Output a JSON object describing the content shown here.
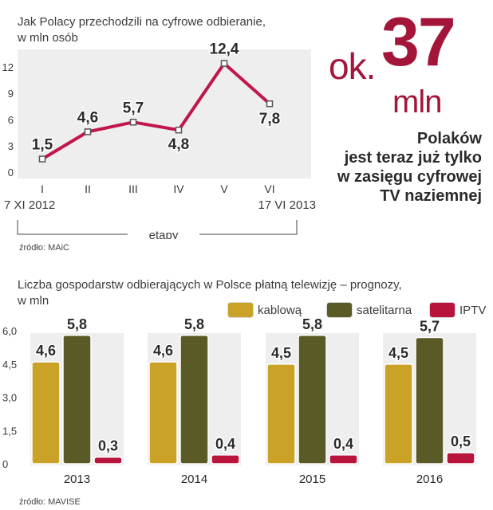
{
  "colors": {
    "accent": "#a3163a",
    "line": "#c2154a",
    "panel": "#eeeeee",
    "kablowa": "#c9a227",
    "satelitarna": "#5a5a26",
    "iptv": "#b8143c"
  },
  "headline": {
    "prefix": "ok.",
    "number": "37",
    "unit": "mln",
    "lines": [
      "Polaków",
      "jest teraz już tylko",
      "w zasięgu cyfrowej",
      "TV naziemnej"
    ]
  },
  "chart_data": [
    {
      "type": "line",
      "title": "Jak Polacy przechodzili na cyfrowe odbieranie, w mln osób",
      "title_lines": [
        "Jak Polacy przechodzili na cyfrowe odbieranie,",
        "w mln osób"
      ],
      "xlabel": "etapy",
      "x": [
        "I",
        "II",
        "III",
        "IV",
        "V",
        "VI"
      ],
      "values": [
        1.5,
        4.6,
        5.7,
        4.8,
        12.4,
        7.8
      ],
      "value_labels": [
        "1,5",
        "4,6",
        "5,7",
        "4,8",
        "12,4",
        "7,8"
      ],
      "yticks": [
        "0",
        "3",
        "6",
        "9",
        "12"
      ],
      "ylim": [
        0,
        13.5
      ],
      "start_date": "7 XI 2012",
      "end_date": "17 VI 2013",
      "source": "źródło: MAiC"
    },
    {
      "type": "bar",
      "title": "Liczba gospodarstw odbierających w Polsce płatną telewizję – prognozy, w mln",
      "title_lines": [
        "Liczba gospodarstw odbierających w Polsce płatną telewizję – prognozy,",
        "w mln"
      ],
      "categories": [
        "2013",
        "2014",
        "2015",
        "2016"
      ],
      "series": [
        {
          "name": "kablową",
          "values": [
            4.6,
            4.6,
            4.5,
            4.5
          ],
          "labels": [
            "4,6",
            "4,6",
            "4,5",
            "4,5"
          ]
        },
        {
          "name": "satelitarna",
          "values": [
            5.8,
            5.8,
            5.8,
            5.7
          ],
          "labels": [
            "5,8",
            "5,8",
            "5,8",
            "5,7"
          ]
        },
        {
          "name": "IPTV",
          "values": [
            0.3,
            0.4,
            0.4,
            0.5
          ],
          "labels": [
            "0,3",
            "0,4",
            "0,4",
            "0,5"
          ]
        }
      ],
      "yticks": [
        "0",
        "1,5",
        "3,0",
        "4,5",
        "6,0"
      ],
      "ylim": [
        0,
        6.0
      ],
      "source": "źródło: MAVISE"
    }
  ]
}
